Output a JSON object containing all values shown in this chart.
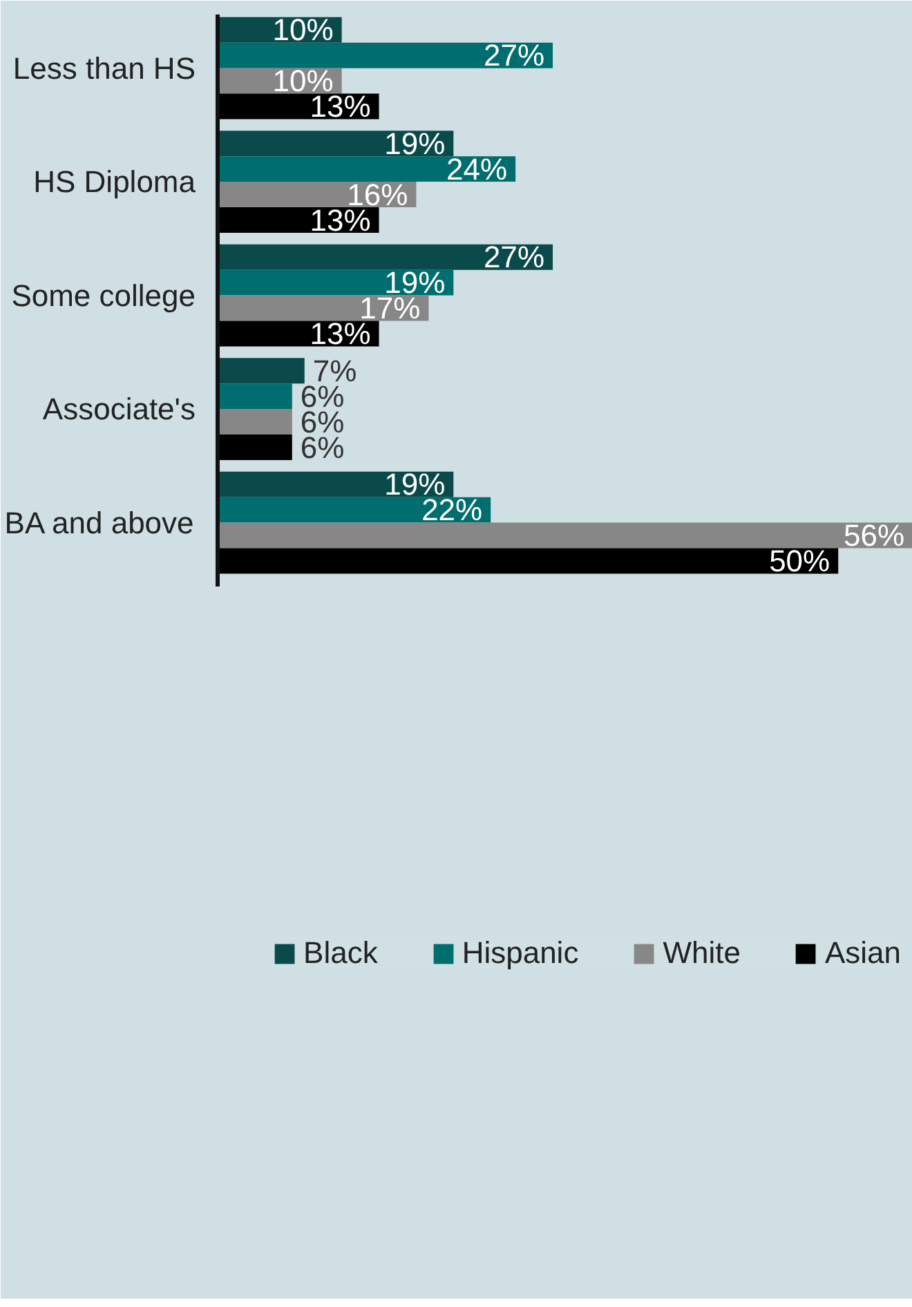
{
  "chart_data": {
    "type": "bar",
    "orientation": "horizontal",
    "categories": [
      "Less than HS",
      "HS Diploma",
      "Some college",
      "Associate's",
      "BA and above"
    ],
    "series": [
      {
        "name": "Black",
        "color": "#0b4a4a",
        "values": [
          10,
          19,
          27,
          7,
          19
        ],
        "value_labels": [
          "10%",
          "19%",
          "27%",
          "7%",
          "19%"
        ]
      },
      {
        "name": "Hispanic",
        "color": "#006e6e",
        "values": [
          27,
          24,
          19,
          6,
          22
        ],
        "value_labels": [
          "27%",
          "24%",
          "19%",
          "6%",
          "22%"
        ]
      },
      {
        "name": "White",
        "color": "#878787",
        "values": [
          10,
          16,
          17,
          6,
          56
        ],
        "value_labels": [
          "10%",
          "16%",
          "17%",
          "6%",
          "56%"
        ]
      },
      {
        "name": "Asian",
        "color": "#000000",
        "values": [
          13,
          13,
          13,
          6,
          50
        ],
        "value_labels": [
          "13%",
          "13%",
          "13%",
          "6%",
          "50%"
        ]
      }
    ],
    "legend": "bottom",
    "grid": false
  }
}
